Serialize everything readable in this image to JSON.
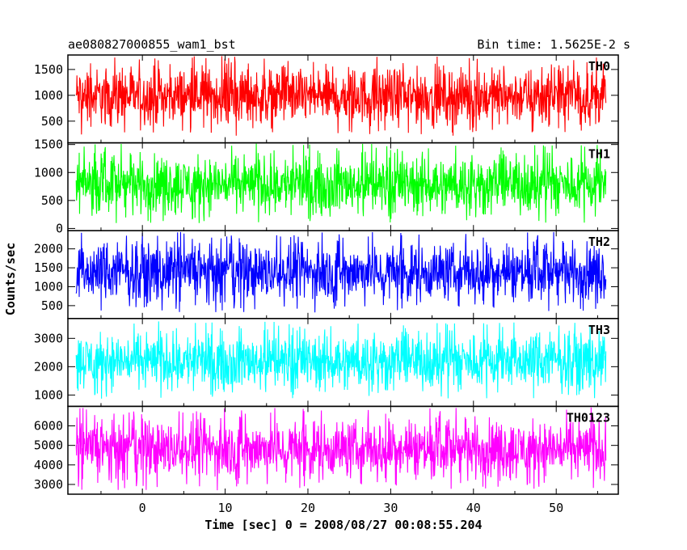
{
  "header": {
    "title": "ae080827000855_wam1_bst",
    "bin_time": "Bin time: 1.5625E-2 s"
  },
  "chart_data": {
    "type": "line",
    "title": "ae080827000855_wam1_bst",
    "xlabel": "Time [sec] 0 = 2008/08/27 00:08:55.204",
    "ylabel": "Counts/sec",
    "xlim": [
      -9,
      57.5
    ],
    "xticks": [
      0,
      10,
      20,
      30,
      40,
      50
    ],
    "x_range_data": [
      -8,
      56
    ],
    "panels": [
      {
        "name": "TH0",
        "color": "#ff0000",
        "ylim": [
          80,
          1780
        ],
        "yticks": [
          500,
          1000,
          1500
        ],
        "base": 820,
        "lo": 210,
        "hi": 1760
      },
      {
        "name": "TH1",
        "color": "#00ff00",
        "ylim": [
          -40,
          1530
        ],
        "yticks": [
          0,
          500,
          1000,
          1500
        ],
        "base": 650,
        "lo": 70,
        "hi": 1520
      },
      {
        "name": "TH2",
        "color": "#0000ff",
        "ylim": [
          160,
          2480
        ],
        "yticks": [
          500,
          1000,
          1500,
          2000
        ],
        "base": 1330,
        "lo": 320,
        "hi": 2460
      },
      {
        "name": "TH3",
        "color": "#00ffff",
        "ylim": [
          600,
          3700
        ],
        "yticks": [
          1000,
          2000,
          3000
        ],
        "base": 2150,
        "lo": 820,
        "hi": 3600
      },
      {
        "name": "TH0123",
        "color": "#ff00ff",
        "ylim": [
          2500,
          7000
        ],
        "yticks": [
          3000,
          4000,
          5000,
          6000
        ],
        "base": 4650,
        "lo": 2700,
        "hi": 6950
      }
    ]
  }
}
